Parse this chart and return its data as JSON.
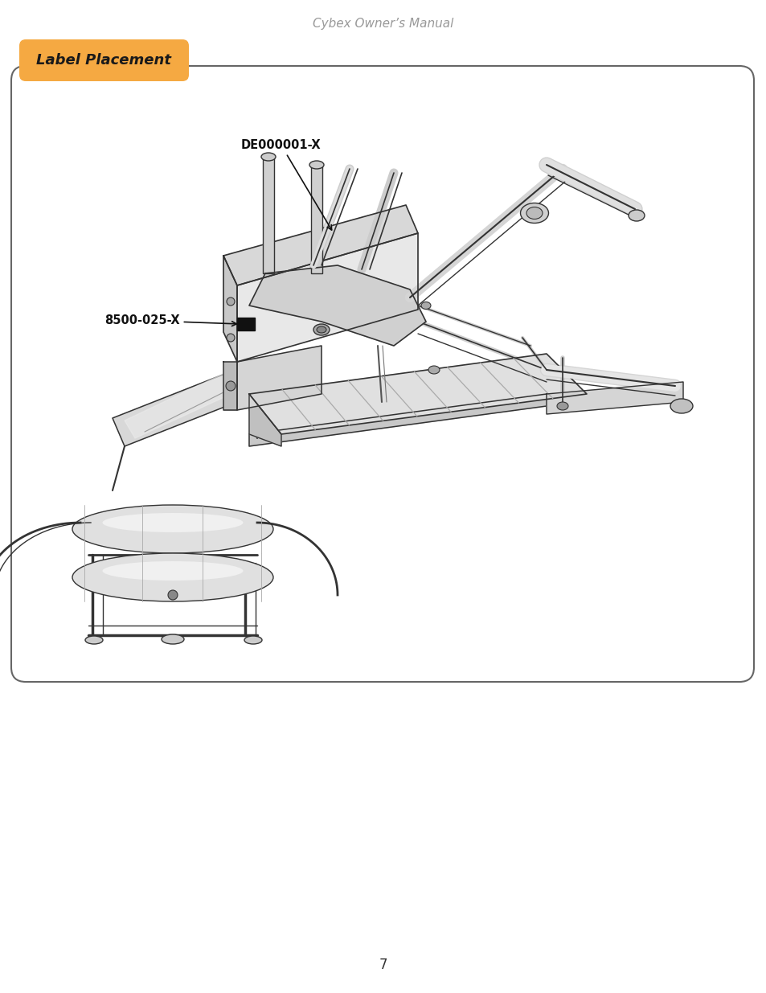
{
  "page_title": "Cybex Owner’s Manual",
  "page_title_color": "#999999",
  "page_title_style": "italic",
  "page_number": "7",
  "section_label": "Label Placement",
  "section_label_bg": "#F5A942",
  "section_label_text_color": "#1a1a1a",
  "box_bg": "#ffffff",
  "box_border_color": "#666666",
  "annotation1_text": "DE000001-X",
  "annotation2_text": "8500-025-X",
  "annotation_fontsize": 10.5,
  "annotation_fontweight": "bold",
  "background_color": "#ffffff",
  "fig_width": 9.54,
  "fig_height": 12.35,
  "dpi": 100
}
